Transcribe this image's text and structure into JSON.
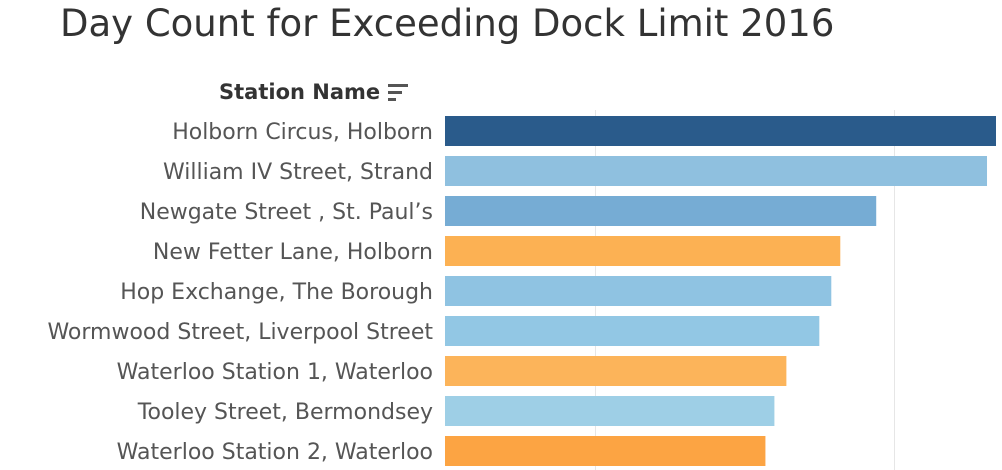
{
  "title": "Day Count for Exceeding Dock Limit 2016",
  "column_header": "Station Name",
  "icons": {
    "sort": "sort-descending-icon"
  },
  "chart_data": {
    "type": "bar",
    "orientation": "horizontal",
    "categories": [
      "Holborn Circus, Holborn",
      "William IV Street, Strand",
      "Newgate Street , St. Paul’s",
      "New Fetter Lane, Holborn",
      "Hop Exchange, The Borough",
      "Wormwood Street, Liverpool Street",
      "Waterloo Station 1, Waterloo",
      "Tooley Street, Bermondsey",
      "Waterloo Station 2, Waterloo"
    ],
    "values": [
      184,
      181,
      144,
      132,
      129,
      125,
      114,
      110,
      107
    ],
    "colors": [
      "#2a5b8b",
      "#8fc0df",
      "#76acd4",
      "#fcb153",
      "#8fc3e2",
      "#92c7e4",
      "#fcb45a",
      "#9ecfe6",
      "#fca443"
    ],
    "xlim": [
      0,
      184
    ],
    "x_gridlines": [
      50,
      150
    ],
    "grid": true
  }
}
